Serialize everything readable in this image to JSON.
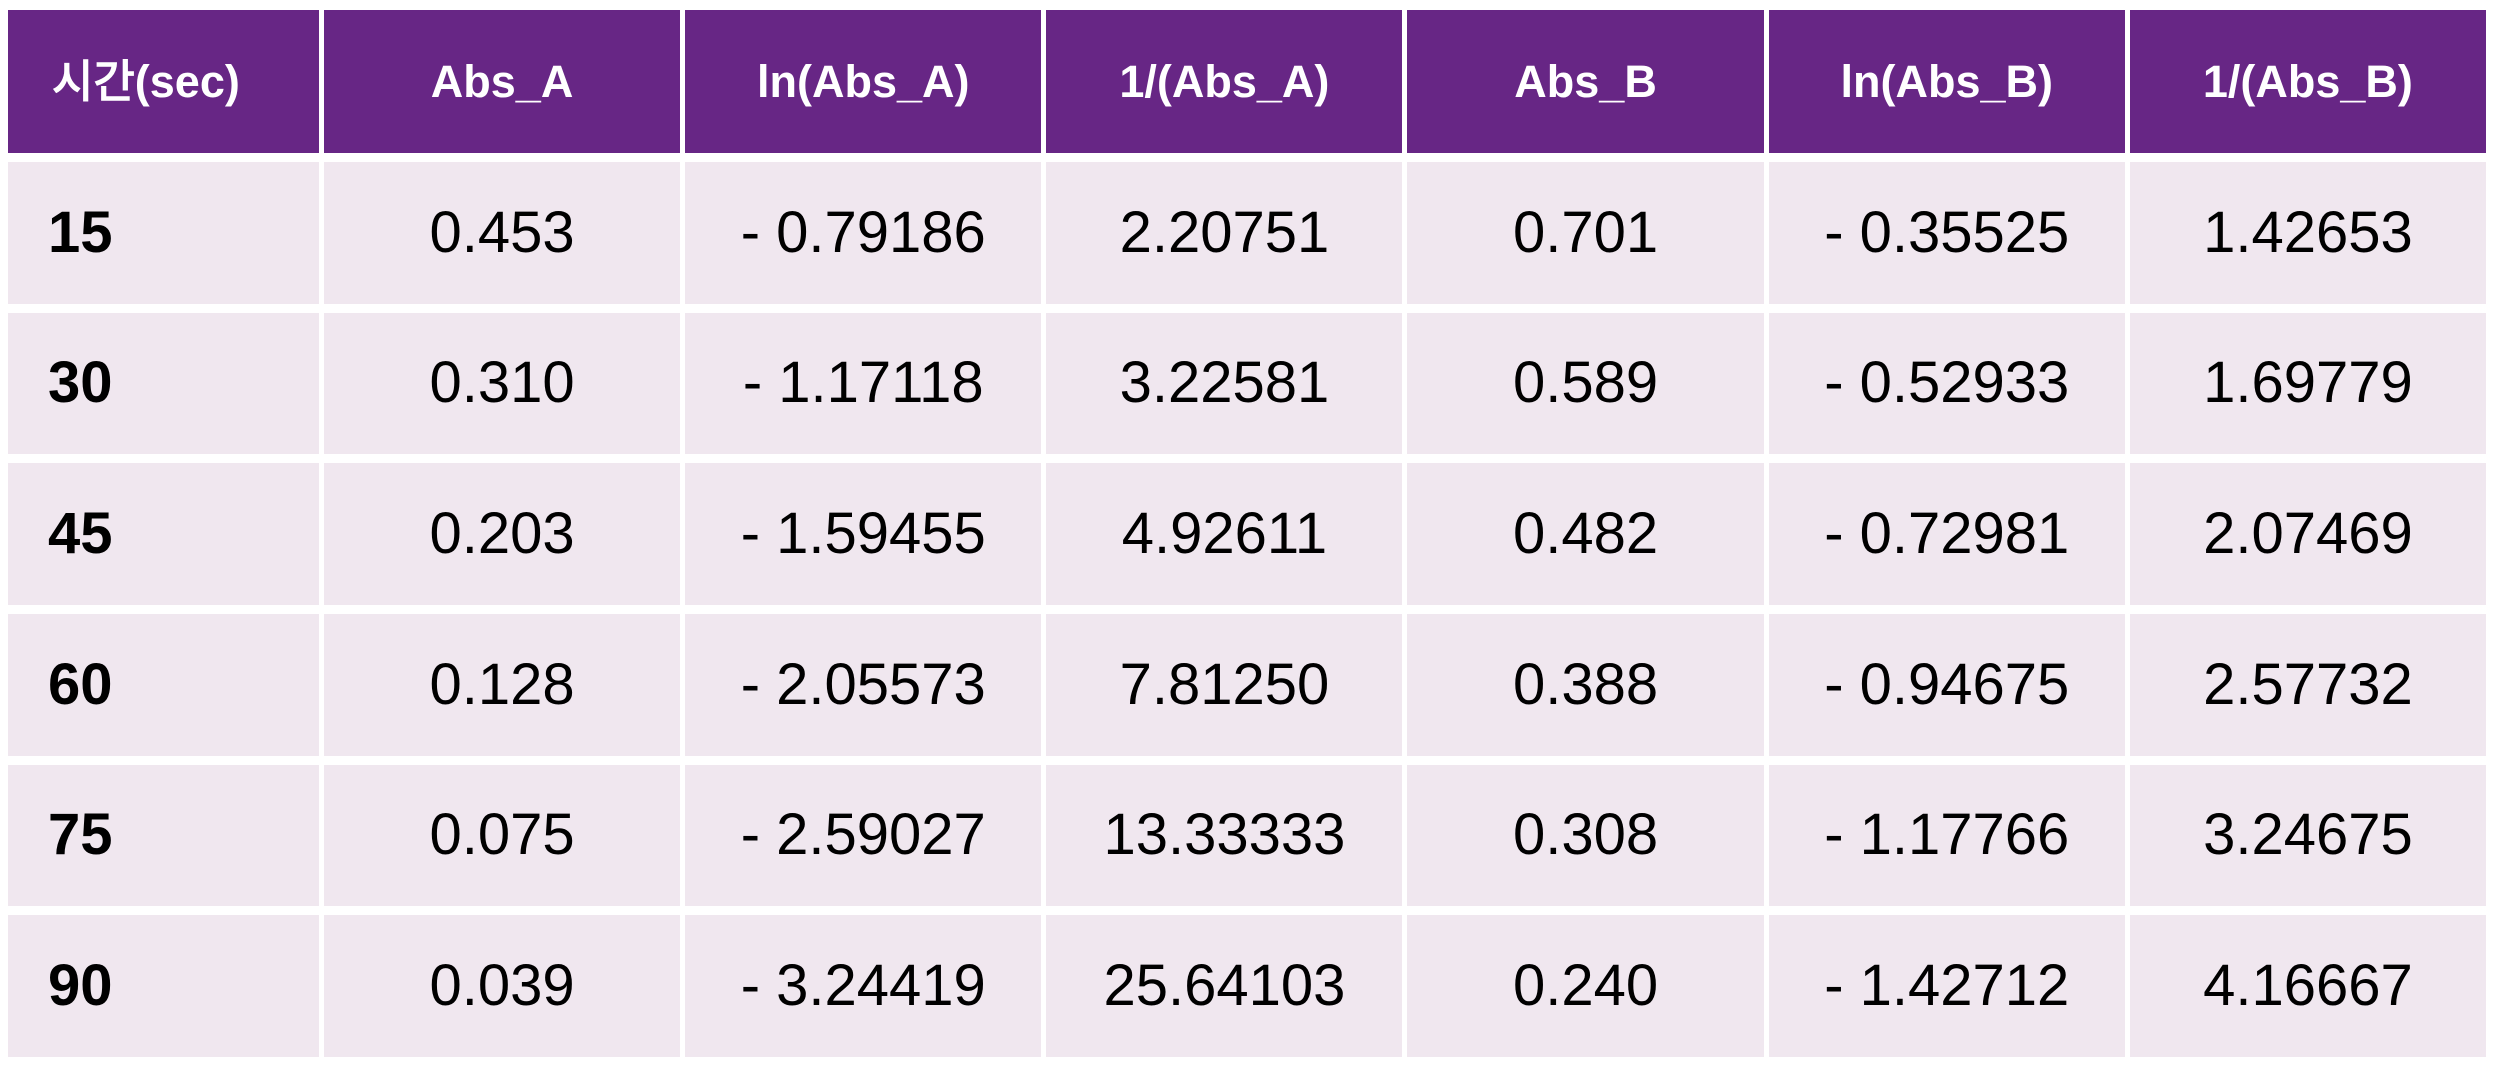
{
  "colors": {
    "header_bg": "#672685",
    "header_text": "#ffffff",
    "row_bg": "#f0e7ef",
    "cell_text": "#000000",
    "grid_lines": "#ffffff",
    "page_bg": "#ffffff"
  },
  "table": {
    "columns": [
      {
        "label": "시간(sec)"
      },
      {
        "label": "Abs_A"
      },
      {
        "label": "ln(Abs_A)"
      },
      {
        "label": "1/(Abs_A)"
      },
      {
        "label": "Abs_B"
      },
      {
        "label": "ln(Abs_B)"
      },
      {
        "label": "1/(Abs_B)"
      }
    ],
    "rows": [
      {
        "cells": [
          "15",
          "0.453",
          "- 0.79186",
          "2.20751",
          "0.701",
          "- 0.35525",
          "1.42653"
        ]
      },
      {
        "cells": [
          "30",
          "0.310",
          "- 1.17118",
          "3.22581",
          "0.589",
          "- 0.52933",
          "1.69779"
        ]
      },
      {
        "cells": [
          "45",
          "0.203",
          "- 1.59455",
          "4.92611",
          "0.482",
          "- 0.72981",
          "2.07469"
        ]
      },
      {
        "cells": [
          "60",
          "0.128",
          "- 2.05573",
          "7.81250",
          "0.388",
          "- 0.94675",
          "2.57732"
        ]
      },
      {
        "cells": [
          "75",
          "0.075",
          "- 2.59027",
          "13.33333",
          "0.308",
          "- 1.17766",
          "3.24675"
        ]
      },
      {
        "cells": [
          "90",
          "0.039",
          "- 3.24419",
          "25.64103",
          "0.240",
          "- 1.42712",
          "4.16667"
        ]
      }
    ]
  },
  "chart_data": {
    "type": "table",
    "title": "",
    "columns": [
      "시간(sec)",
      "Abs_A",
      "ln(Abs_A)",
      "1/(Abs_A)",
      "Abs_B",
      "ln(Abs_B)",
      "1/(Abs_B)"
    ],
    "rows": [
      [
        15,
        0.453,
        -0.79186,
        2.20751,
        0.701,
        -0.35525,
        1.42653
      ],
      [
        30,
        0.31,
        -1.17118,
        3.22581,
        0.589,
        -0.52933,
        1.69779
      ],
      [
        45,
        0.203,
        -1.59455,
        4.92611,
        0.482,
        -0.72981,
        2.07469
      ],
      [
        60,
        0.128,
        -2.05573,
        7.8125,
        0.388,
        -0.94675,
        2.57732
      ],
      [
        75,
        0.075,
        -2.59027,
        13.33333,
        0.308,
        -1.17766,
        3.24675
      ],
      [
        90,
        0.039,
        -3.24419,
        25.64103,
        0.24,
        -1.42712,
        4.16667
      ]
    ],
    "layout_hints": {
      "header_fill": "#672685",
      "body_fill": "#f0e7ef",
      "grid": "white separators",
      "first_column_bold_left_aligned": true,
      "value_cells_centered": true
    }
  }
}
